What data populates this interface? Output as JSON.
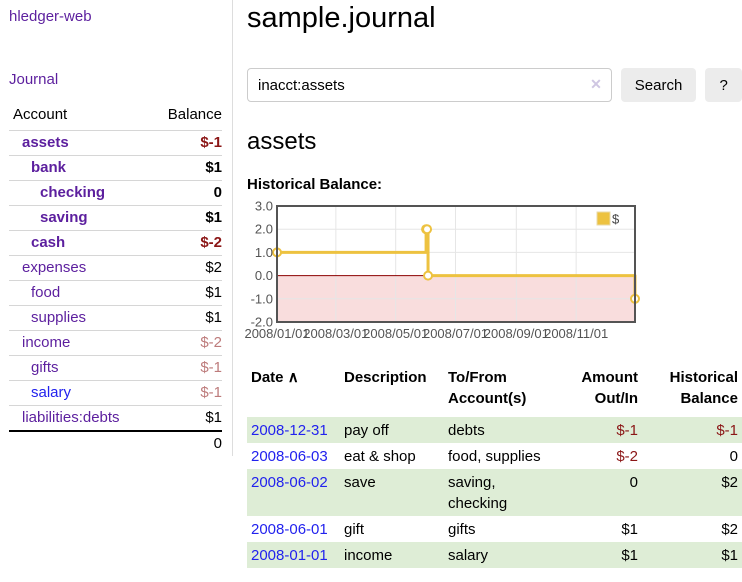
{
  "app": {
    "brand": "hledger-web",
    "journal_link": "Journal"
  },
  "sidebar": {
    "account_header": "Account",
    "balance_header": "Balance",
    "rows": [
      {
        "name": "assets",
        "depth": 1,
        "bold": true,
        "balance": "$-1",
        "balance_style": "neg"
      },
      {
        "name": "bank",
        "depth": 2,
        "bold": true,
        "balance": "$1",
        "balance_style": "pos"
      },
      {
        "name": "checking",
        "depth": 3,
        "bold": true,
        "balance": "0",
        "balance_style": "pos"
      },
      {
        "name": "saving",
        "depth": 3,
        "bold": true,
        "balance": "$1",
        "balance_style": "pos"
      },
      {
        "name": "cash",
        "depth": 2,
        "bold": true,
        "balance": "$-2",
        "balance_style": "neg"
      },
      {
        "name": "expenses",
        "depth": 1,
        "bold": false,
        "balance": "$2",
        "balance_style": "pos"
      },
      {
        "name": "food",
        "depth": 2,
        "bold": false,
        "balance": "$1",
        "balance_style": "pos"
      },
      {
        "name": "supplies",
        "depth": 2,
        "bold": false,
        "balance": "$1",
        "balance_style": "pos"
      },
      {
        "name": "income",
        "depth": 1,
        "bold": false,
        "balance": "$-2",
        "balance_style": "neg-soft"
      },
      {
        "name": "gifts",
        "depth": 2,
        "bold": false,
        "balance": "$-1",
        "balance_style": "neg-soft"
      },
      {
        "name": "salary",
        "depth": 2,
        "bold": false,
        "balance": "$-1",
        "balance_style": "neg-soft",
        "link_color": "blue"
      },
      {
        "name": "liabilities:debts",
        "depth": 1,
        "bold": false,
        "balance": "$1",
        "balance_style": "pos"
      }
    ],
    "total": "0"
  },
  "header": {
    "title": "sample.journal"
  },
  "search": {
    "value": "inacct:assets",
    "clear_icon": "✕",
    "button_label": "Search",
    "help_label": "?"
  },
  "account_page": {
    "heading": "assets",
    "chart_label": "Historical Balance:"
  },
  "chart_data": {
    "type": "line",
    "step": true,
    "series": [
      {
        "name": "$",
        "color": "#edc240",
        "points": [
          [
            "2008-01-01",
            1
          ],
          [
            "2008-06-01",
            2
          ],
          [
            "2008-06-02",
            2
          ],
          [
            "2008-06-03",
            0
          ],
          [
            "2008-12-31",
            -1
          ]
        ]
      }
    ],
    "x_ticks": [
      "2008/01/01",
      "2008/03/01",
      "2008/05/01",
      "2008/07/01",
      "2008/09/01",
      "2008/11/01"
    ],
    "y_ticks": [
      "3.0",
      "2.0",
      "1.0",
      "0.0",
      "-1.0",
      "-2.0"
    ],
    "ylim": [
      -2,
      3
    ],
    "legend_position": "top-right",
    "grid": true,
    "gridline_color": "#e6e6e6",
    "border_color": "#545454",
    "axis_label_color": "#545454",
    "negative_region_color": "#f9dddd",
    "zero_line_color": "#8b0000",
    "marker_fill": "#ffffff"
  },
  "transactions": {
    "columns": [
      "Date",
      "Description",
      "To/From Account(s)",
      "Amount Out/In",
      "Historical Balance"
    ],
    "sort_icon": "∧",
    "rows": [
      {
        "date": "2008-12-31",
        "description": "pay off",
        "accounts": "debts",
        "amount": "$-1",
        "amount_negative": true,
        "balance": "$-1",
        "balance_negative": true
      },
      {
        "date": "2008-06-03",
        "description": "eat & shop",
        "accounts": "food, supplies",
        "amount": "$-2",
        "amount_negative": true,
        "balance": "0",
        "balance_negative": false
      },
      {
        "date": "2008-06-02",
        "description": "save",
        "accounts": "saving, checking",
        "amount": "0",
        "amount_negative": false,
        "balance": "$2",
        "balance_negative": false
      },
      {
        "date": "2008-06-01",
        "description": "gift",
        "accounts": "gifts",
        "amount": "$1",
        "amount_negative": false,
        "balance": "$2",
        "balance_negative": false
      },
      {
        "date": "2008-01-01",
        "description": "income",
        "accounts": "salary",
        "amount": "$1",
        "amount_negative": false,
        "balance": "$1",
        "balance_negative": false
      }
    ]
  },
  "colors": {
    "link_purple": "#5c1f9e",
    "link_blue": "#2222ee",
    "negative_strong": "#8b1616",
    "negative_soft": "#bd7b7b",
    "row_stripe_green": "#deedd6",
    "series_gold": "#edc240",
    "button_bg": "#ececec"
  }
}
